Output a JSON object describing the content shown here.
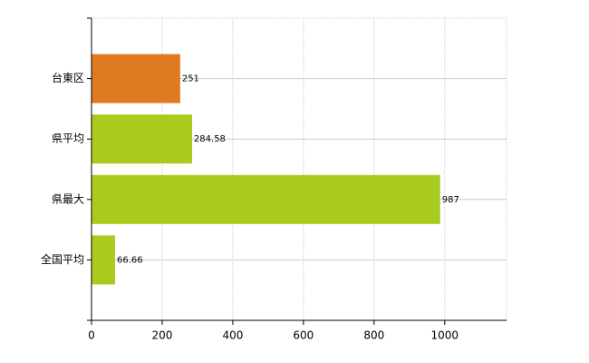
{
  "chart_data": {
    "type": "barh",
    "categories": [
      "台東区",
      "県平均",
      "県最大",
      "全国平均"
    ],
    "values": [
      251,
      284.58,
      987,
      66.66
    ],
    "colors": [
      "#e07a22",
      "#a9cb1e",
      "#a9cb1e",
      "#a9cb1e"
    ],
    "xlim": [
      0,
      1175
    ],
    "xticks": [
      0,
      200,
      400,
      600,
      800,
      1000
    ],
    "grid": true
  }
}
